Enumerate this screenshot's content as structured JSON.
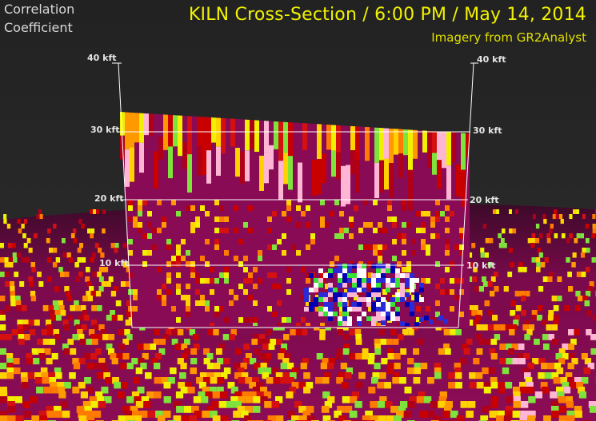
{
  "product_label": [
    "Correlation",
    "Coefficient"
  ],
  "title": "KILN Cross-Section / 6:00 PM / May 14, 2014",
  "credit": "Imagery from GR2Analyst",
  "altitude_labels": [
    "40 kft",
    "30 kft",
    "20 kft",
    "10 kft"
  ],
  "colors": {
    "background": "#262626",
    "ground_base": "#8a0b55",
    "title": "#f2f200",
    "grid": "#ffffff"
  }
}
